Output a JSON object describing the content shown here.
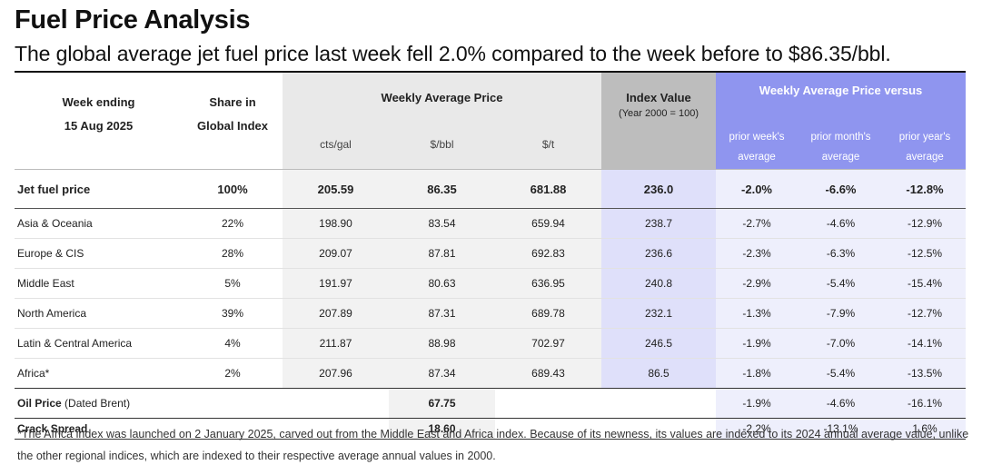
{
  "title": "Fuel Price Analysis",
  "subtitle": "The global average jet fuel price last week fell 2.0% compared to the week before to $86.35/bbl.",
  "colors": {
    "index_header": "#4b56d2",
    "versus_header": "#8f95ef",
    "index_cells": "#dfe0fa",
    "versus_cells": "#eeeffc",
    "gray_header": "#bdbdbd"
  },
  "header": {
    "week_ending_line1": "Week ending",
    "week_ending_line2": "15 Aug 2025",
    "share_line1": "Share in",
    "share_line2": "Global Index",
    "weekly_avg_price": "Weekly Average Price",
    "cts_gal": "cts/gal",
    "usd_bbl": "$/bbl",
    "usd_t": "$/t",
    "index_value": "Index Value",
    "index_sub": "(Year 2000 = 100)",
    "versus": "Weekly Average Price versus",
    "prior_week_1": "prior week's",
    "prior_week_2": "average",
    "prior_month_1": "prior month's",
    "prior_month_2": "average",
    "prior_year_1": "prior year's",
    "prior_year_2": "average"
  },
  "jet": {
    "label": "Jet fuel price",
    "share": "100%",
    "cts": "205.59",
    "bbl": "86.35",
    "t": "681.88",
    "index": "236.0",
    "wk": "-2.0%",
    "mo": "-6.6%",
    "yr": "-12.8%"
  },
  "regions": [
    {
      "label": "Asia & Oceania",
      "share": "22%",
      "cts": "198.90",
      "bbl": "83.54",
      "t": "659.94",
      "index": "238.7",
      "wk": "-2.7%",
      "mo": "-4.6%",
      "yr": "-12.9%"
    },
    {
      "label": "Europe & CIS",
      "share": "28%",
      "cts": "209.07",
      "bbl": "87.81",
      "t": "692.83",
      "index": "236.6",
      "wk": "-2.3%",
      "mo": "-6.3%",
      "yr": "-12.5%"
    },
    {
      "label": "Middle East",
      "share": "5%",
      "cts": "191.97",
      "bbl": "80.63",
      "t": "636.95",
      "index": "240.8",
      "wk": "-2.9%",
      "mo": "-5.4%",
      "yr": "-15.4%"
    },
    {
      "label": "North America",
      "share": "39%",
      "cts": "207.89",
      "bbl": "87.31",
      "t": "689.78",
      "index": "232.1",
      "wk": "-1.3%",
      "mo": "-7.9%",
      "yr": "-12.7%"
    },
    {
      "label": "Latin & Central America",
      "share": "4%",
      "cts": "211.87",
      "bbl": "88.98",
      "t": "702.97",
      "index": "246.5",
      "wk": "-1.9%",
      "mo": "-7.0%",
      "yr": "-14.1%"
    },
    {
      "label": "Africa*",
      "share": "2%",
      "cts": "207.96",
      "bbl": "87.34",
      "t": "689.43",
      "index": "86.5",
      "wk": "-1.8%",
      "mo": "-5.4%",
      "yr": "-13.5%"
    }
  ],
  "oil": {
    "label_bold": "Oil Price",
    "label_rest": " (Dated Brent)",
    "bbl": "67.75",
    "wk": "-1.9%",
    "mo": "-4.6%",
    "yr": "-16.1%"
  },
  "crack": {
    "label": "Crack Spread",
    "bbl": "18.60",
    "wk": "-2.2%",
    "mo": "-13.1%",
    "yr": "1.6%"
  },
  "footnote": "*The Africa index was launched on 2 January 2025, carved out from the Middle East and Africa index. Because of its newness, its values are indexed  to its 2024 annual average value, unlike the other regional indices, which are indexed to their respective average annual values in 2000."
}
